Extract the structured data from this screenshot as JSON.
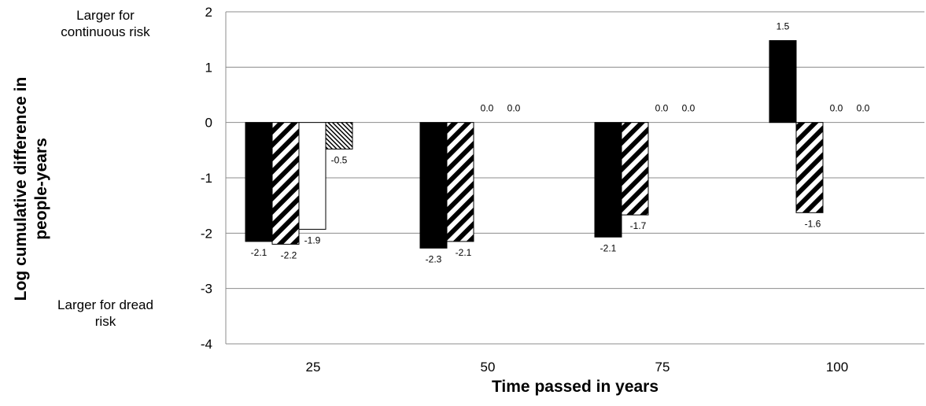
{
  "chart_data": {
    "type": "bar",
    "title": "",
    "xlabel": "Time passed in years",
    "ylabel": "Log cumulative difference in people-years",
    "categories": [
      "25",
      "50",
      "75",
      "100"
    ],
    "ylim": [
      -4,
      2
    ],
    "yticks": [
      2,
      1,
      0,
      -1,
      -2,
      -3,
      -4
    ],
    "grid": true,
    "annotations": {
      "top": "Larger for continuous risk",
      "bottom": "Larger for dread risk"
    },
    "series": [
      {
        "pattern": "solid-black",
        "values": [
          -2.15,
          -2.27,
          -2.07,
          1.48
        ],
        "labels": [
          "-2.1",
          "-2.3",
          "-2.1",
          "1.5"
        ]
      },
      {
        "pattern": "diagonal-hatch",
        "values": [
          -2.2,
          -2.15,
          -1.67,
          -1.63
        ],
        "labels": [
          "-2.2",
          "-2.1",
          "-1.7",
          "-1.6"
        ]
      },
      {
        "pattern": "white",
        "values": [
          -1.93,
          0,
          0,
          0
        ],
        "labels": [
          "-1.9",
          "0.0",
          "0.0",
          "0.0"
        ]
      },
      {
        "pattern": "dense-hatch",
        "values": [
          -0.48,
          0,
          0,
          0
        ],
        "labels": [
          "-0.5",
          "0.0",
          "0.0",
          "0.0"
        ]
      }
    ]
  }
}
